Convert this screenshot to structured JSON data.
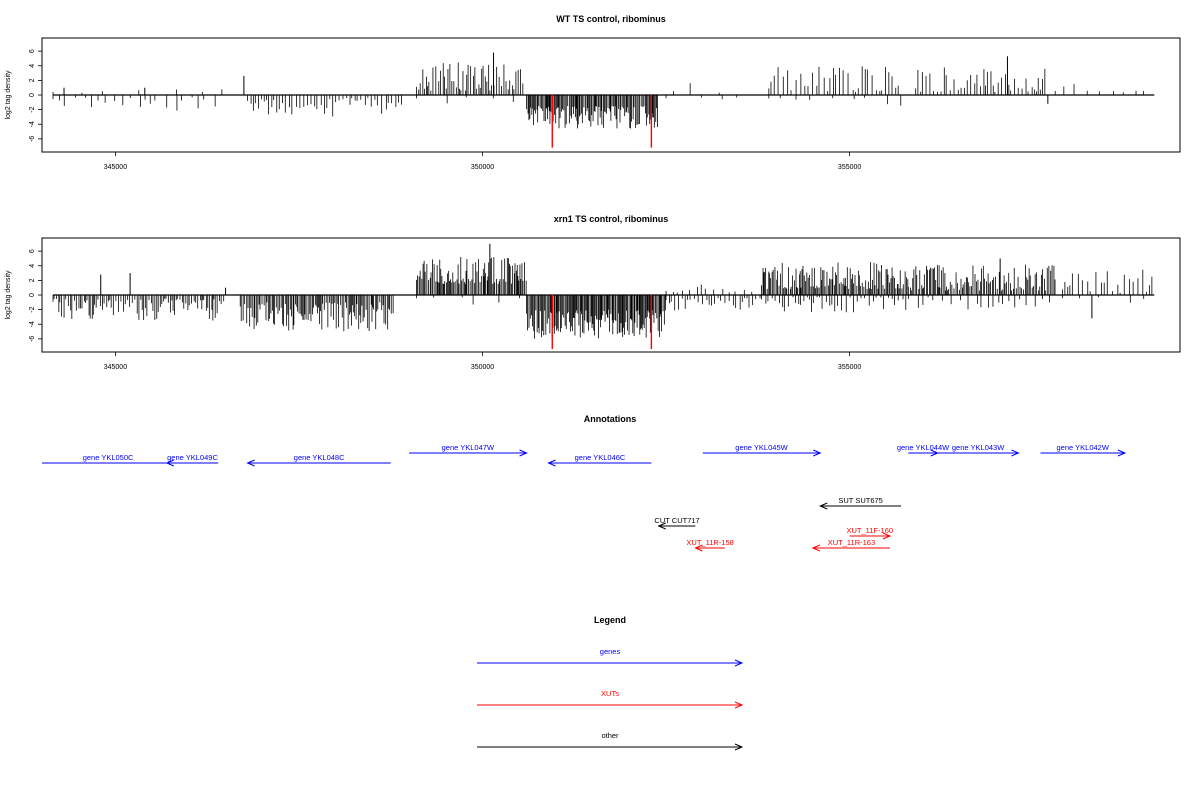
{
  "colors": {
    "genes": "#0000ff",
    "XUTs": "#ff0000",
    "other": "#000000",
    "highlight": "#ff0000",
    "bars": "#000000"
  },
  "chart_data": [
    {
      "type": "bar",
      "title": "WT TS control, ribominus",
      "ylabel": "log2 tag density",
      "xlim": [
        344000,
        359500
      ],
      "ylim": [
        -7.8,
        7.8
      ],
      "xticks": [
        345000,
        350000,
        355000
      ],
      "xtick_labels": [
        "345000",
        "350000",
        "355000"
      ],
      "yticks": [
        -6,
        -4,
        -2,
        0,
        2,
        4,
        6
      ],
      "ytick_labels": [
        "-6",
        "-4",
        "-2",
        "0",
        "2",
        "4",
        "6"
      ],
      "baseline": [
        344150,
        359150
      ],
      "segments": [
        {
          "start": 344150,
          "end": 346450,
          "strand": "minus",
          "density": 0.12,
          "min": 0.3,
          "max": 2.2,
          "seed": 11
        },
        {
          "start": 344150,
          "end": 346500,
          "strand": "plus",
          "density": 0.03,
          "min": 0.3,
          "max": 1.2,
          "seed": 12
        },
        {
          "start": 346450,
          "end": 346800,
          "strand": "plus",
          "density": 0.02,
          "min": 0.5,
          "max": 2.6,
          "seed": 13
        },
        {
          "start": 346800,
          "end": 348900,
          "strand": "minus",
          "density": 0.3,
          "min": 0.4,
          "max": 3.2,
          "seed": 14
        },
        {
          "start": 349100,
          "end": 350550,
          "strand": "plus",
          "density": 0.5,
          "min": 0.6,
          "max": 4.5,
          "seed": 15
        },
        {
          "start": 349100,
          "end": 350550,
          "strand": "minus",
          "density": 0.04,
          "min": 0.3,
          "max": 1.5,
          "seed": 16
        },
        {
          "start": 350600,
          "end": 352400,
          "strand": "minus",
          "density": 0.9,
          "min": 1.5,
          "max": 4.6,
          "seed": 17
        },
        {
          "start": 352500,
          "end": 353600,
          "strand": "minus",
          "density": 0.04,
          "min": 0.3,
          "max": 1.4,
          "seed": 18
        },
        {
          "start": 352600,
          "end": 353600,
          "strand": "plus",
          "density": 0.03,
          "min": 0.3,
          "max": 2.0,
          "seed": 19
        },
        {
          "start": 353900,
          "end": 355700,
          "strand": "plus",
          "density": 0.28,
          "min": 0.4,
          "max": 4.0,
          "seed": 20
        },
        {
          "start": 353900,
          "end": 355700,
          "strand": "minus",
          "density": 0.06,
          "min": 0.3,
          "max": 1.6,
          "seed": 21
        },
        {
          "start": 355900,
          "end": 357700,
          "strand": "plus",
          "density": 0.35,
          "min": 0.4,
          "max": 4.0,
          "seed": 22
        },
        {
          "start": 357800,
          "end": 359150,
          "strand": "plus",
          "density": 0.1,
          "min": 0.3,
          "max": 2.2,
          "seed": 23
        }
      ],
      "spikes": [
        {
          "x": 344300,
          "y": 1.0
        },
        {
          "x": 345400,
          "y": 1.0
        },
        {
          "x": 346750,
          "y": 2.6
        },
        {
          "x": 350150,
          "y": 5.8
        },
        {
          "x": 357150,
          "y": 5.3
        },
        {
          "x": 357700,
          "y": -1.2
        }
      ],
      "highlights": [
        {
          "x": 350950,
          "y": -7.2
        },
        {
          "x": 352300,
          "y": -7.2
        }
      ]
    },
    {
      "type": "bar",
      "title": "xrn1 TS control, ribominus",
      "ylabel": "log2 tag density",
      "xlim": [
        344000,
        359500
      ],
      "ylim": [
        -7.8,
        7.8
      ],
      "xticks": [
        345000,
        350000,
        355000
      ],
      "xtick_labels": [
        "345000",
        "350000",
        "355000"
      ],
      "yticks": [
        -6,
        -4,
        -2,
        0,
        2,
        4,
        6
      ],
      "ytick_labels": [
        "-6",
        "-4",
        "-2",
        "0",
        "2",
        "4",
        "6"
      ],
      "baseline": [
        344150,
        359150
      ],
      "segments": [
        {
          "start": 344150,
          "end": 346500,
          "strand": "minus",
          "density": 0.55,
          "min": 0.5,
          "max": 3.5,
          "seed": 31
        },
        {
          "start": 346700,
          "end": 348800,
          "strand": "minus",
          "density": 0.7,
          "min": 1.0,
          "max": 5.0,
          "seed": 32
        },
        {
          "start": 349100,
          "end": 350600,
          "strand": "plus",
          "density": 0.8,
          "min": 1.5,
          "max": 5.5,
          "seed": 33
        },
        {
          "start": 349100,
          "end": 350600,
          "strand": "minus",
          "density": 0.05,
          "min": 0.3,
          "max": 1.3,
          "seed": 34
        },
        {
          "start": 350600,
          "end": 352500,
          "strand": "minus",
          "density": 1.0,
          "min": 2.0,
          "max": 6.0,
          "seed": 35
        },
        {
          "start": 352500,
          "end": 353800,
          "strand": "minus",
          "density": 0.3,
          "min": 0.4,
          "max": 2.5,
          "seed": 36
        },
        {
          "start": 352500,
          "end": 353800,
          "strand": "plus",
          "density": 0.15,
          "min": 0.3,
          "max": 2.0,
          "seed": 37
        },
        {
          "start": 353800,
          "end": 355800,
          "strand": "plus",
          "density": 0.8,
          "min": 0.8,
          "max": 4.5,
          "seed": 38
        },
        {
          "start": 353800,
          "end": 355800,
          "strand": "minus",
          "density": 0.3,
          "min": 0.3,
          "max": 2.5,
          "seed": 39
        },
        {
          "start": 355800,
          "end": 357800,
          "strand": "plus",
          "density": 0.7,
          "min": 0.6,
          "max": 4.2,
          "seed": 40
        },
        {
          "start": 355800,
          "end": 357800,
          "strand": "minus",
          "density": 0.15,
          "min": 0.3,
          "max": 2.0,
          "seed": 41
        },
        {
          "start": 357900,
          "end": 359150,
          "strand": "plus",
          "density": 0.25,
          "min": 0.3,
          "max": 3.5,
          "seed": 42
        },
        {
          "start": 357900,
          "end": 359150,
          "strand": "minus",
          "density": 0.04,
          "min": 0.3,
          "max": 1.2,
          "seed": 43
        }
      ],
      "spikes": [
        {
          "x": 344800,
          "y": 2.8
        },
        {
          "x": 345200,
          "y": 3.0
        },
        {
          "x": 346500,
          "y": 1.0
        },
        {
          "x": 350100,
          "y": 7.0
        },
        {
          "x": 357050,
          "y": 5.0
        },
        {
          "x": 358300,
          "y": -3.2
        }
      ],
      "highlights": [
        {
          "x": 350950,
          "y": -7.4
        },
        {
          "x": 352300,
          "y": -7.4
        }
      ]
    }
  ],
  "annotations": {
    "title": "Annotations",
    "features": [
      {
        "label": "gene YKL050C",
        "type": "genes",
        "start": 344000,
        "end": 345800,
        "strand": "plus",
        "row": 0,
        "bar": false
      },
      {
        "label": "gene YKL049C",
        "type": "genes",
        "start": 345700,
        "end": 346400,
        "strand": "minus",
        "row": 0
      },
      {
        "label": "gene YKL048C",
        "type": "genes",
        "start": 346800,
        "end": 348750,
        "strand": "minus",
        "row": 0
      },
      {
        "label": "gene YKL047W",
        "type": "genes",
        "start": 349000,
        "end": 350600,
        "strand": "plus",
        "row": 1
      },
      {
        "label": "gene YKL046C",
        "type": "genes",
        "start": 350900,
        "end": 352300,
        "strand": "minus",
        "row": 0
      },
      {
        "label": "gene YKL045W",
        "type": "genes",
        "start": 353000,
        "end": 354600,
        "strand": "plus",
        "row": 1
      },
      {
        "label": "gene YKL044W",
        "type": "genes",
        "start": 355800,
        "end": 356200,
        "strand": "plus",
        "row": 1
      },
      {
        "label": "gene YKL043W",
        "type": "genes",
        "start": 356200,
        "end": 357300,
        "strand": "plus",
        "row": 1
      },
      {
        "label": "gene YKL042W",
        "type": "genes",
        "start": 357600,
        "end": 358750,
        "strand": "plus",
        "row": 1
      },
      {
        "label": "SUT SUT675",
        "type": "other",
        "start": 354600,
        "end": 355700,
        "strand": "minus",
        "row": 2
      },
      {
        "label": "CUT CUT717",
        "type": "other",
        "start": 352400,
        "end": 352900,
        "strand": "minus",
        "row": 3
      },
      {
        "label": "XUT_11F-160",
        "type": "XUTs",
        "start": 355000,
        "end": 355550,
        "strand": "plus",
        "row": 4
      },
      {
        "label": "XUT_11R-158",
        "type": "XUTs",
        "start": 352900,
        "end": 353300,
        "strand": "minus",
        "row": 5
      },
      {
        "label": "XUT_11R-163",
        "type": "XUTs",
        "start": 354500,
        "end": 355550,
        "strand": "minus",
        "row": 5
      }
    ]
  },
  "legend": {
    "title": "Legend",
    "items": [
      {
        "label": "genes",
        "type": "genes"
      },
      {
        "label": "XUTs",
        "type": "XUTs"
      },
      {
        "label": "other",
        "type": "other"
      }
    ]
  }
}
